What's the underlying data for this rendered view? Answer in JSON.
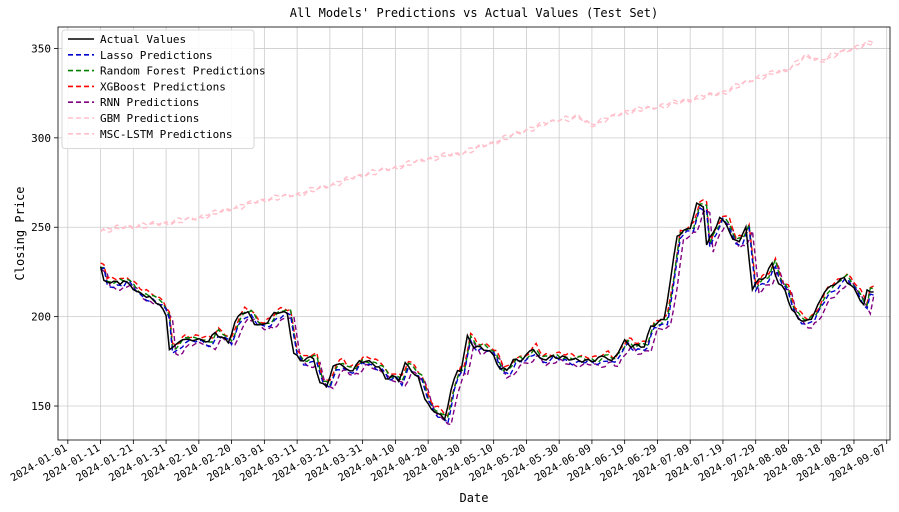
{
  "chart_data": {
    "type": "line",
    "title": "All Models' Predictions vs Actual Values (Test Set)",
    "xlabel": "Date",
    "ylabel": "Closing Price",
    "grid": true,
    "legend_position": "top-left",
    "x_start": "2024-01-11",
    "x_end": "2024-09-03",
    "xlim": [
      "2023-12-29",
      "2024-09-08"
    ],
    "ylim": [
      131,
      362
    ],
    "x_ticks": [
      "2024-01-01",
      "2024-01-11",
      "2024-01-21",
      "2024-01-31",
      "2024-02-10",
      "2024-02-20",
      "2024-03-01",
      "2024-03-11",
      "2024-03-21",
      "2024-03-31",
      "2024-04-10",
      "2024-04-20",
      "2024-04-30",
      "2024-05-10",
      "2024-05-20",
      "2024-05-30",
      "2024-06-09",
      "2024-06-19",
      "2024-06-29",
      "2024-07-09",
      "2024-07-19",
      "2024-07-29",
      "2024-08-08",
      "2024-08-18",
      "2024-08-28",
      "2024-09-07"
    ],
    "y_ticks": [
      150,
      200,
      250,
      300,
      350
    ],
    "actual_anchors": [
      [
        "2024-01-11",
        228
      ],
      [
        "2024-01-12",
        219
      ],
      [
        "2024-01-17",
        219
      ],
      [
        "2024-01-18",
        221
      ],
      [
        "2024-01-21",
        216
      ],
      [
        "2024-01-23",
        212
      ],
      [
        "2024-01-26",
        211
      ],
      [
        "2024-01-27",
        209
      ],
      [
        "2024-01-29",
        208
      ],
      [
        "2024-01-31",
        200
      ],
      [
        "2024-02-01",
        182
      ],
      [
        "2024-02-03",
        183
      ],
      [
        "2024-02-05",
        188
      ],
      [
        "2024-02-07",
        187
      ],
      [
        "2024-02-09",
        188
      ],
      [
        "2024-02-11",
        186
      ],
      [
        "2024-02-13",
        186
      ],
      [
        "2024-02-15",
        191
      ],
      [
        "2024-02-17",
        189
      ],
      [
        "2024-02-19",
        186
      ],
      [
        "2024-02-21",
        196
      ],
      [
        "2024-02-23",
        202
      ],
      [
        "2024-02-25",
        202
      ],
      [
        "2024-02-27",
        197
      ],
      [
        "2024-02-29",
        195
      ],
      [
        "2024-03-02",
        197
      ],
      [
        "2024-03-04",
        201
      ],
      [
        "2024-03-06",
        203
      ],
      [
        "2024-03-08",
        202
      ],
      [
        "2024-03-10",
        180
      ],
      [
        "2024-03-12",
        175
      ],
      [
        "2024-03-14",
        176
      ],
      [
        "2024-03-16",
        177
      ],
      [
        "2024-03-18",
        163
      ],
      [
        "2024-03-20",
        162
      ],
      [
        "2024-03-22",
        171
      ],
      [
        "2024-03-24",
        174
      ],
      [
        "2024-03-26",
        170
      ],
      [
        "2024-03-28",
        171
      ],
      [
        "2024-03-30",
        175
      ],
      [
        "2024-04-01",
        175
      ],
      [
        "2024-04-03",
        173
      ],
      [
        "2024-04-05",
        172
      ],
      [
        "2024-04-07",
        166
      ],
      [
        "2024-04-09",
        167
      ],
      [
        "2024-04-11",
        164
      ],
      [
        "2024-04-13",
        173
      ],
      [
        "2024-04-15",
        170
      ],
      [
        "2024-04-17",
        166
      ],
      [
        "2024-04-19",
        155
      ],
      [
        "2024-04-21",
        147
      ],
      [
        "2024-04-23",
        146
      ],
      [
        "2024-04-25",
        142
      ],
      [
        "2024-04-27",
        160
      ],
      [
        "2024-04-29",
        170
      ],
      [
        "2024-04-30",
        170
      ],
      [
        "2024-05-02",
        188
      ],
      [
        "2024-05-04",
        183
      ],
      [
        "2024-05-06",
        183
      ],
      [
        "2024-05-08",
        182
      ],
      [
        "2024-05-10",
        178
      ],
      [
        "2024-05-12",
        170
      ],
      [
        "2024-05-14",
        170
      ],
      [
        "2024-05-16",
        176
      ],
      [
        "2024-05-18",
        176
      ],
      [
        "2024-05-20",
        178
      ],
      [
        "2024-05-22",
        182
      ],
      [
        "2024-05-24",
        176
      ],
      [
        "2024-05-28",
        178
      ],
      [
        "2024-06-02",
        176
      ],
      [
        "2024-06-07",
        176
      ],
      [
        "2024-06-09",
        175
      ],
      [
        "2024-06-11",
        176
      ],
      [
        "2024-06-13",
        178
      ],
      [
        "2024-06-15",
        175
      ],
      [
        "2024-06-17",
        181
      ],
      [
        "2024-06-19",
        186
      ],
      [
        "2024-06-21",
        183
      ],
      [
        "2024-06-25",
        184
      ],
      [
        "2024-06-27",
        195
      ],
      [
        "2024-06-30",
        197
      ],
      [
        "2024-07-01",
        198
      ],
      [
        "2024-07-03",
        220
      ],
      [
        "2024-07-05",
        246
      ],
      [
        "2024-07-07",
        248
      ],
      [
        "2024-07-09",
        250
      ],
      [
        "2024-07-11",
        262
      ],
      [
        "2024-07-13",
        262
      ],
      [
        "2024-07-14",
        240
      ],
      [
        "2024-07-16",
        248
      ],
      [
        "2024-07-18",
        255
      ],
      [
        "2024-07-20",
        252
      ],
      [
        "2024-07-22",
        242
      ],
      [
        "2024-07-24",
        243
      ],
      [
        "2024-07-26",
        250
      ],
      [
        "2024-07-28",
        216
      ],
      [
        "2024-07-30",
        220
      ],
      [
        "2024-08-01",
        222
      ],
      [
        "2024-08-03",
        230
      ],
      [
        "2024-08-05",
        219
      ],
      [
        "2024-08-07",
        215
      ],
      [
        "2024-08-09",
        203
      ],
      [
        "2024-08-11",
        199
      ],
      [
        "2024-08-13",
        197
      ],
      [
        "2024-08-15",
        200
      ],
      [
        "2024-08-17",
        206
      ],
      [
        "2024-08-19",
        214
      ],
      [
        "2024-08-21",
        216
      ],
      [
        "2024-08-23",
        220
      ],
      [
        "2024-08-25",
        222
      ],
      [
        "2024-08-27",
        218
      ],
      [
        "2024-08-29",
        212
      ],
      [
        "2024-08-31",
        206
      ],
      [
        "2024-09-01",
        214
      ],
      [
        "2024-09-03",
        215
      ]
    ],
    "gbm_anchors": [
      [
        "2024-01-11",
        248
      ],
      [
        "2024-01-21",
        250
      ],
      [
        "2024-01-31",
        252
      ],
      [
        "2024-02-10",
        255
      ],
      [
        "2024-02-20",
        260
      ],
      [
        "2024-03-01",
        265
      ],
      [
        "2024-03-11",
        268
      ],
      [
        "2024-03-21",
        273
      ],
      [
        "2024-03-31",
        279
      ],
      [
        "2024-04-10",
        283
      ],
      [
        "2024-04-20",
        288
      ],
      [
        "2024-04-30",
        291
      ],
      [
        "2024-05-10",
        297
      ],
      [
        "2024-05-20",
        304
      ],
      [
        "2024-05-30",
        310
      ],
      [
        "2024-06-05",
        311
      ],
      [
        "2024-06-09",
        307
      ],
      [
        "2024-06-19",
        314
      ],
      [
        "2024-06-29",
        317
      ],
      [
        "2024-07-09",
        321
      ],
      [
        "2024-07-19",
        325
      ],
      [
        "2024-07-29",
        333
      ],
      [
        "2024-08-08",
        338
      ],
      [
        "2024-08-13",
        345
      ],
      [
        "2024-08-18",
        343
      ],
      [
        "2024-08-28",
        350
      ],
      [
        "2024-09-03",
        353
      ]
    ],
    "series": [
      {
        "name": "Actual Values",
        "color": "#000000",
        "dash": "solid",
        "offset": 0,
        "scale": 1,
        "kind": "actual"
      },
      {
        "name": "Lasso Predictions",
        "color": "#0000cc",
        "dash": "dashed",
        "offset": -1.5,
        "scale": 1,
        "kind": "actual"
      },
      {
        "name": "Random Forest Predictions",
        "color": "#008000",
        "dash": "dashed",
        "offset": 0.5,
        "scale": 1,
        "kind": "actual"
      },
      {
        "name": "XGBoost Predictions",
        "color": "#ff0000",
        "dash": "dashed",
        "offset": 2,
        "scale": 1,
        "kind": "actual"
      },
      {
        "name": "RNN Predictions",
        "color": "#800080",
        "dash": "dashed",
        "offset": -3,
        "scale": 1,
        "kind": "actual"
      },
      {
        "name": "GBM Predictions",
        "color": "#ffc0cb",
        "dash": "dashed",
        "offset": 0,
        "scale": 1,
        "kind": "gbm"
      },
      {
        "name": "MSC-LSTM Predictions",
        "color": "#ffc0cb",
        "dash": "dashed",
        "offset": 0.8,
        "scale": 1,
        "kind": "gbm"
      }
    ]
  }
}
